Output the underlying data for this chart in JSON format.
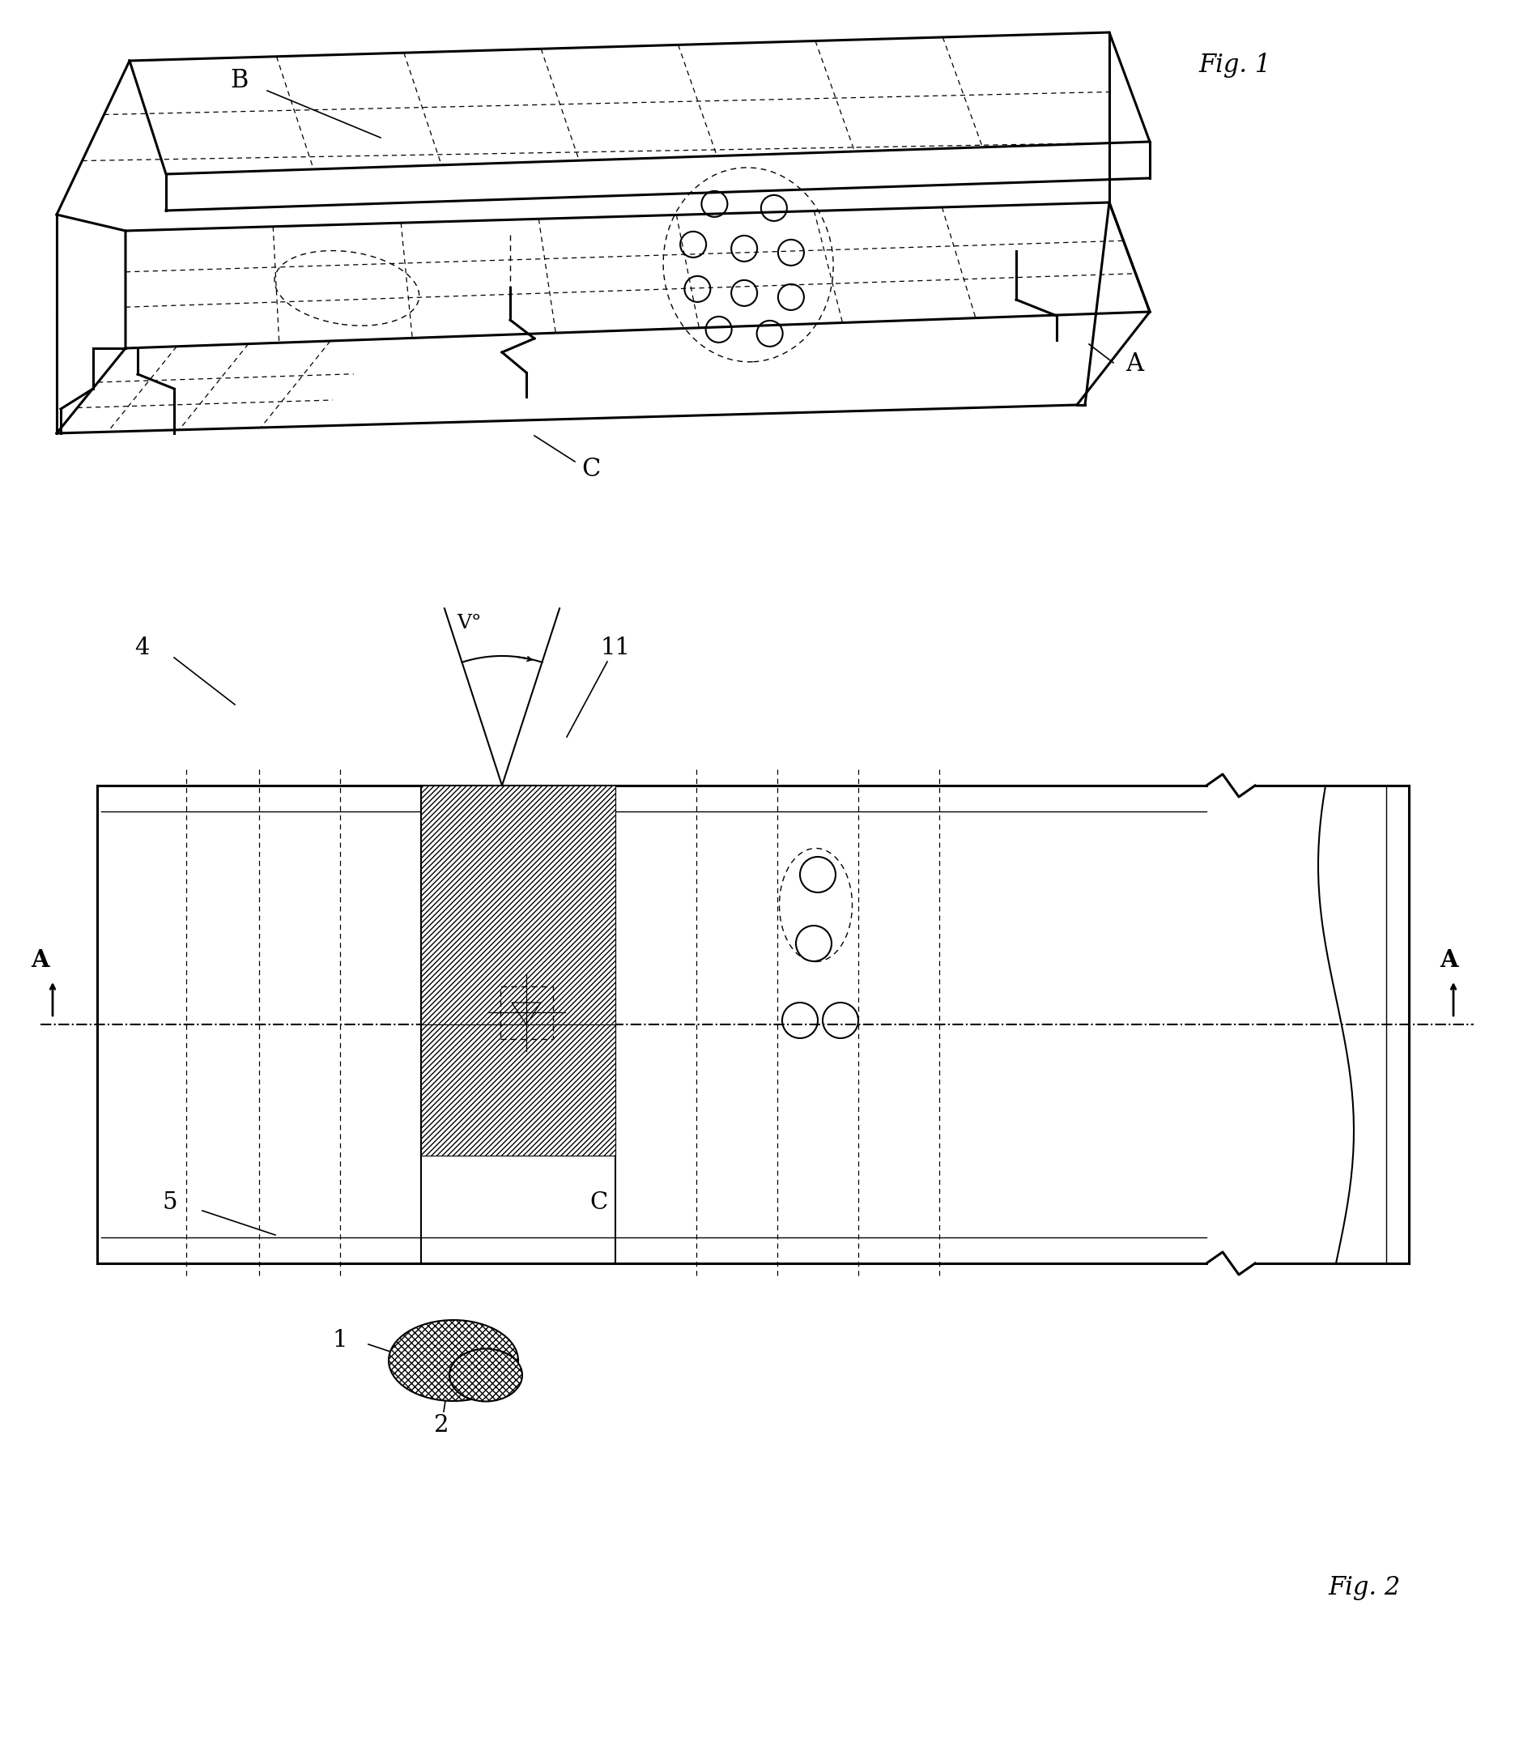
{
  "background_color": "#ffffff",
  "fig_width": 18.97,
  "fig_height": 21.77,
  "fig1_label": "Fig. 1",
  "fig2_label": "Fig. 2",
  "label_A_fig1": "A",
  "label_B": "B",
  "label_C_fig1": "C",
  "label_A_fig2_left": "A",
  "label_A_fig2_right": "A",
  "label_C_fig2": "C",
  "label_1": "1",
  "label_2": "2",
  "label_4": "4",
  "label_5": "5",
  "label_11": "11",
  "label_V": "V°",
  "lw_bold": 2.2,
  "lw_med": 1.5,
  "lw_thin": 1.0
}
